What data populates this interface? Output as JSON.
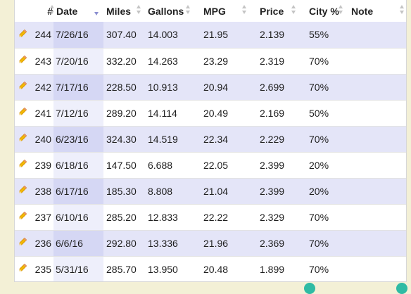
{
  "columns": {
    "number": "#",
    "date": "Date",
    "miles": "Miles",
    "gallons": "Gallons",
    "mpg": "MPG",
    "price": "Price",
    "city": "City %",
    "note": "Note"
  },
  "sort": {
    "column": "date",
    "direction": "descending"
  },
  "colors": {
    "row_alt": "#e4e5f8",
    "sorted_column": "#d5d7f4",
    "edit_icon": "#f0b400",
    "accent": "#2fbba4"
  },
  "icons": {
    "edit": "pencil-icon",
    "sort": "sort-arrows-icon"
  },
  "rows": [
    {
      "num": "244",
      "date": "7/26/16",
      "miles": "307.40",
      "gallons": "14.003",
      "mpg": "21.95",
      "price": "2.139",
      "city": "55%",
      "note": ""
    },
    {
      "num": "243",
      "date": "7/20/16",
      "miles": "332.20",
      "gallons": "14.263",
      "mpg": "23.29",
      "price": "2.319",
      "city": "70%",
      "note": ""
    },
    {
      "num": "242",
      "date": "7/17/16",
      "miles": "228.50",
      "gallons": "10.913",
      "mpg": "20.94",
      "price": "2.699",
      "city": "70%",
      "note": ""
    },
    {
      "num": "241",
      "date": "7/12/16",
      "miles": "289.20",
      "gallons": "14.114",
      "mpg": "20.49",
      "price": "2.169",
      "city": "50%",
      "note": ""
    },
    {
      "num": "240",
      "date": "6/23/16",
      "miles": "324.30",
      "gallons": "14.519",
      "mpg": "22.34",
      "price": "2.229",
      "city": "70%",
      "note": ""
    },
    {
      "num": "239",
      "date": "6/18/16",
      "miles": "147.50",
      "gallons": "6.688",
      "mpg": "22.05",
      "price": "2.399",
      "city": "20%",
      "note": ""
    },
    {
      "num": "238",
      "date": "6/17/16",
      "miles": "185.30",
      "gallons": "8.808",
      "mpg": "21.04",
      "price": "2.399",
      "city": "20%",
      "note": ""
    },
    {
      "num": "237",
      "date": "6/10/16",
      "miles": "285.20",
      "gallons": "12.833",
      "mpg": "22.22",
      "price": "2.329",
      "city": "70%",
      "note": ""
    },
    {
      "num": "236",
      "date": "6/6/16",
      "miles": "292.80",
      "gallons": "13.336",
      "mpg": "21.96",
      "price": "2.369",
      "city": "70%",
      "note": ""
    },
    {
      "num": "235",
      "date": "5/31/16",
      "miles": "285.70",
      "gallons": "13.950",
      "mpg": "20.48",
      "price": "1.899",
      "city": "70%",
      "note": ""
    }
  ]
}
